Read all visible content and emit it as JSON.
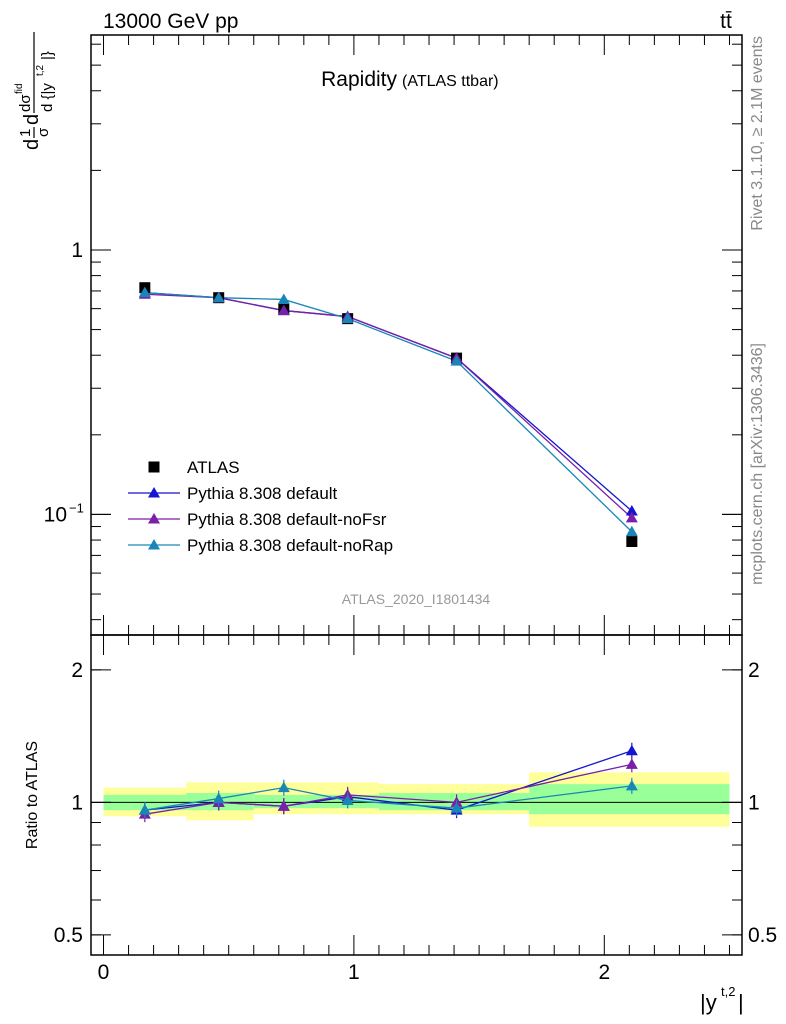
{
  "header": {
    "energy_label": "13000 GeV pp",
    "process_label": "tt̄"
  },
  "side_labels": {
    "rivet": "Rivet 3.1.10, ≥ 2.1M events",
    "mcplots": "mcplots.cern.ch [arXiv:1306.3436]"
  },
  "chart_data": [
    {
      "type": "line",
      "title": "Rapidity",
      "subtitle": "(ATLAS ttbar)",
      "ylabel": "d(1/σ)dσ^fid/d{|y^t,2|}",
      "y_scale": "log",
      "xlim": [
        -0.05,
        2.55
      ],
      "ylim": [
        0.035,
        6.5
      ],
      "yticks": [
        {
          "v": 1,
          "label": "1"
        },
        {
          "v": 0.1,
          "label": "10^-1"
        }
      ],
      "watermark": "ATLAS_2020_I1801434",
      "legend_position": "bottom-left",
      "x": [
        0.165,
        0.46,
        0.72,
        0.975,
        1.41,
        2.11
      ],
      "series": [
        {
          "name": "ATLAS",
          "marker": "square",
          "color": "#000000",
          "values": [
            0.72,
            0.66,
            0.6,
            0.55,
            0.39,
            0.079
          ]
        },
        {
          "name": "Pythia 8.308 default",
          "marker": "triangle",
          "color": "#1515d0",
          "values": [
            0.69,
            0.66,
            0.59,
            0.56,
            0.39,
            0.103
          ]
        },
        {
          "name": "Pythia 8.308 default-noFsr",
          "marker": "triangle",
          "color": "#7a1fa8",
          "values": [
            0.68,
            0.66,
            0.59,
            0.56,
            0.39,
            0.097
          ]
        },
        {
          "name": "Pythia 8.308 default-noRap",
          "marker": "triangle",
          "color": "#1a86b8",
          "values": [
            0.69,
            0.66,
            0.65,
            0.55,
            0.38,
            0.086
          ]
        }
      ]
    },
    {
      "type": "line",
      "ylabel": "Ratio to ATLAS",
      "xlabel": "|y^t,2|",
      "y_scale": "log",
      "xlim": [
        -0.05,
        2.55
      ],
      "ylim": [
        0.45,
        2.4
      ],
      "yticks": [
        {
          "v": 2,
          "label": "2"
        },
        {
          "v": 1,
          "label": "1"
        },
        {
          "v": 0.5,
          "label": "0.5"
        }
      ],
      "xticks": [
        {
          "v": 0,
          "label": "0"
        },
        {
          "v": 1,
          "label": "1"
        },
        {
          "v": 2,
          "label": "2"
        }
      ],
      "bands": [
        {
          "x0": 0.0,
          "x1": 0.33,
          "stat": [
            0.96,
            1.04
          ],
          "total": [
            0.93,
            1.08
          ]
        },
        {
          "x0": 0.33,
          "x1": 0.6,
          "stat": [
            0.96,
            1.05
          ],
          "total": [
            0.91,
            1.11
          ]
        },
        {
          "x0": 0.6,
          "x1": 1.1,
          "stat": [
            0.97,
            1.04
          ],
          "total": [
            0.94,
            1.11
          ]
        },
        {
          "x0": 1.1,
          "x1": 1.7,
          "stat": [
            0.96,
            1.05
          ],
          "total": [
            0.94,
            1.1
          ]
        },
        {
          "x0": 1.7,
          "x1": 2.5,
          "stat": [
            0.94,
            1.1
          ],
          "total": [
            0.88,
            1.17
          ]
        }
      ],
      "x": [
        0.165,
        0.46,
        0.72,
        0.975,
        1.41,
        2.11
      ],
      "series": [
        {
          "name": "Pythia 8.308 default",
          "color": "#1515d0",
          "values": [
            0.96,
            1.0,
            0.98,
            1.03,
            0.96,
            1.31
          ]
        },
        {
          "name": "Pythia 8.308 default-noFsr",
          "color": "#7a1fa8",
          "values": [
            0.94,
            1.0,
            0.98,
            1.04,
            1.0,
            1.22
          ]
        },
        {
          "name": "Pythia 8.308 default-noRap",
          "color": "#1a86b8",
          "values": [
            0.96,
            1.02,
            1.08,
            1.01,
            0.97,
            1.09
          ]
        }
      ]
    }
  ]
}
